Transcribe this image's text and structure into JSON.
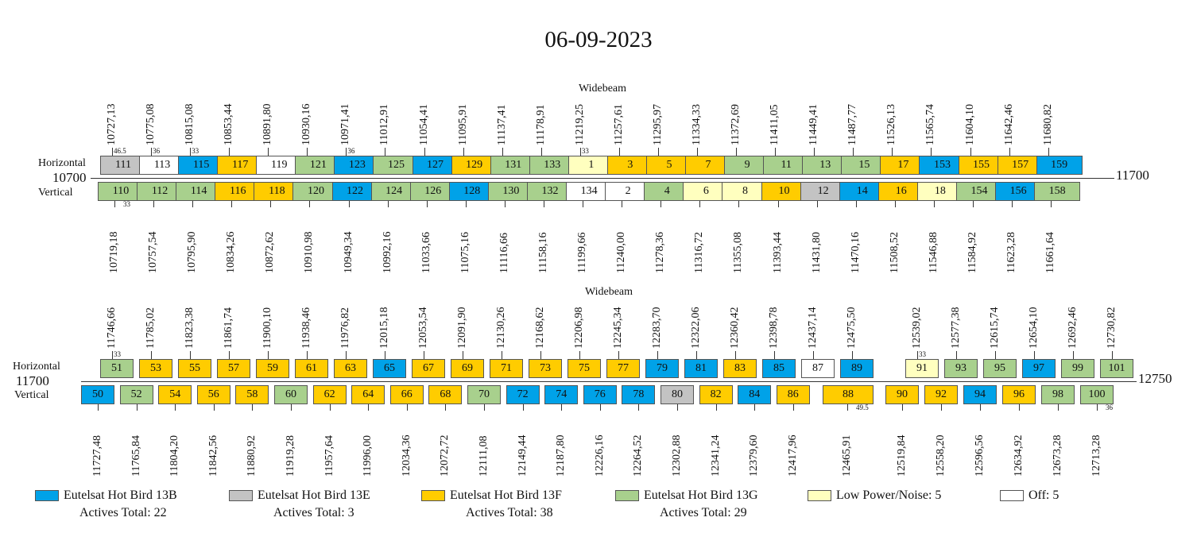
{
  "title": "06-09-2023",
  "colors": {
    "13B": "#00a2e8",
    "13E": "#c3c3c3",
    "13F": "#ffcc00",
    "13G": "#a8d08d",
    "low": "#ffffbf",
    "off": "#ffffff"
  },
  "panels": [
    {
      "beam": "Widebeam",
      "start": "10700",
      "end": "11700",
      "h_label": "Horizontal",
      "v_label": "Vertical",
      "horizontal": [
        {
          "ch": "111",
          "freq": "10727,13",
          "sat": "13E",
          "sr": "46.5"
        },
        {
          "ch": "113",
          "freq": "10775,08",
          "sat": "off",
          "sr": "36"
        },
        {
          "ch": "115",
          "freq": "10815,08",
          "sat": "13B",
          "sr": "33"
        },
        {
          "ch": "117",
          "freq": "10853,44",
          "sat": "13F"
        },
        {
          "ch": "119",
          "freq": "10891,80",
          "sat": "off"
        },
        {
          "ch": "121",
          "freq": "10930,16",
          "sat": "13G"
        },
        {
          "ch": "123",
          "freq": "10971,41",
          "sat": "13B",
          "sr": "36"
        },
        {
          "ch": "125",
          "freq": "11012,91",
          "sat": "13G"
        },
        {
          "ch": "127",
          "freq": "11054,41",
          "sat": "13B"
        },
        {
          "ch": "129",
          "freq": "11095,91",
          "sat": "13F"
        },
        {
          "ch": "131",
          "freq": "11137,41",
          "sat": "13G"
        },
        {
          "ch": "133",
          "freq": "11178,91",
          "sat": "13G"
        },
        {
          "ch": "1",
          "freq": "11219,25",
          "sat": "low",
          "sr": "33"
        },
        {
          "ch": "3",
          "freq": "11257,61",
          "sat": "13F"
        },
        {
          "ch": "5",
          "freq": "11295,97",
          "sat": "13F"
        },
        {
          "ch": "7",
          "freq": "11334,33",
          "sat": "13F"
        },
        {
          "ch": "9",
          "freq": "11372,69",
          "sat": "13G"
        },
        {
          "ch": "11",
          "freq": "11411,05",
          "sat": "13G"
        },
        {
          "ch": "13",
          "freq": "11449,41",
          "sat": "13G"
        },
        {
          "ch": "15",
          "freq": "11487,77",
          "sat": "13G"
        },
        {
          "ch": "17",
          "freq": "11526,13",
          "sat": "13F"
        },
        {
          "ch": "153",
          "freq": "11565,74",
          "sat": "13B"
        },
        {
          "ch": "155",
          "freq": "11604,10",
          "sat": "13F"
        },
        {
          "ch": "157",
          "freq": "11642,46",
          "sat": "13F"
        },
        {
          "ch": "159",
          "freq": "11680,82",
          "sat": "13B"
        }
      ],
      "vertical": [
        {
          "ch": "110",
          "freq": "10719,18",
          "sat": "13G",
          "sr": "33"
        },
        {
          "ch": "112",
          "freq": "10757,54",
          "sat": "13G"
        },
        {
          "ch": "114",
          "freq": "10795,90",
          "sat": "13G"
        },
        {
          "ch": "116",
          "freq": "10834,26",
          "sat": "13F"
        },
        {
          "ch": "118",
          "freq": "10872,62",
          "sat": "13F"
        },
        {
          "ch": "120",
          "freq": "10910,98",
          "sat": "13G"
        },
        {
          "ch": "122",
          "freq": "10949,34",
          "sat": "13B"
        },
        {
          "ch": "124",
          "freq": "10992,16",
          "sat": "13G"
        },
        {
          "ch": "126",
          "freq": "11033,66",
          "sat": "13G"
        },
        {
          "ch": "128",
          "freq": "11075,16",
          "sat": "13B"
        },
        {
          "ch": "130",
          "freq": "11116,66",
          "sat": "13G"
        },
        {
          "ch": "132",
          "freq": "11158,16",
          "sat": "13G"
        },
        {
          "ch": "134",
          "freq": "11199,66",
          "sat": "off"
        },
        {
          "ch": "2",
          "freq": "11240,00",
          "sat": "off"
        },
        {
          "ch": "4",
          "freq": "11278,36",
          "sat": "13G"
        },
        {
          "ch": "6",
          "freq": "11316,72",
          "sat": "low"
        },
        {
          "ch": "8",
          "freq": "11355,08",
          "sat": "low"
        },
        {
          "ch": "10",
          "freq": "11393,44",
          "sat": "13F"
        },
        {
          "ch": "12",
          "freq": "11431,80",
          "sat": "13E"
        },
        {
          "ch": "14",
          "freq": "11470,16",
          "sat": "13B"
        },
        {
          "ch": "16",
          "freq": "11508,52",
          "sat": "13F"
        },
        {
          "ch": "18",
          "freq": "11546,88",
          "sat": "low"
        },
        {
          "ch": "154",
          "freq": "11584,92",
          "sat": "13G"
        },
        {
          "ch": "156",
          "freq": "11623,28",
          "sat": "13B"
        },
        {
          "ch": "158",
          "freq": "11661,64",
          "sat": "13G"
        }
      ]
    },
    {
      "beam": "Widebeam",
      "start": "11700",
      "end": "12750",
      "h_label": "Horizontal",
      "v_label": "Vertical",
      "horizontal": [
        {
          "ch": "51",
          "freq": "11746,66",
          "sat": "13G",
          "sr": "33"
        },
        {
          "ch": "53",
          "freq": "11785,02",
          "sat": "13F"
        },
        {
          "ch": "55",
          "freq": "11823,38",
          "sat": "13F"
        },
        {
          "ch": "57",
          "freq": "11861,74",
          "sat": "13F"
        },
        {
          "ch": "59",
          "freq": "11900,10",
          "sat": "13F"
        },
        {
          "ch": "61",
          "freq": "11938,46",
          "sat": "13F"
        },
        {
          "ch": "63",
          "freq": "11976,82",
          "sat": "13F"
        },
        {
          "ch": "65",
          "freq": "12015,18",
          "sat": "13B"
        },
        {
          "ch": "67",
          "freq": "12053,54",
          "sat": "13F"
        },
        {
          "ch": "69",
          "freq": "12091,90",
          "sat": "13F"
        },
        {
          "ch": "71",
          "freq": "12130,26",
          "sat": "13F"
        },
        {
          "ch": "73",
          "freq": "12168,62",
          "sat": "13F"
        },
        {
          "ch": "75",
          "freq": "12206,98",
          "sat": "13F"
        },
        {
          "ch": "77",
          "freq": "12245,34",
          "sat": "13F"
        },
        {
          "ch": "79",
          "freq": "12283,70",
          "sat": "13B"
        },
        {
          "ch": "81",
          "freq": "12322,06",
          "sat": "13B"
        },
        {
          "ch": "83",
          "freq": "12360,42",
          "sat": "13F"
        },
        {
          "ch": "85",
          "freq": "12398,78",
          "sat": "13B"
        },
        {
          "ch": "87",
          "freq": "12437,14",
          "sat": "off"
        },
        {
          "ch": "89",
          "freq": "12475,50",
          "sat": "13B"
        },
        {
          "ch": "91",
          "freq": "12539,02",
          "sat": "low",
          "sr": "33"
        },
        {
          "ch": "93",
          "freq": "12577,38",
          "sat": "13G"
        },
        {
          "ch": "95",
          "freq": "12615,74",
          "sat": "13G"
        },
        {
          "ch": "97",
          "freq": "12654,10",
          "sat": "13B"
        },
        {
          "ch": "99",
          "freq": "12692,46",
          "sat": "13G"
        },
        {
          "ch": "101",
          "freq": "12730,82",
          "sat": "13G"
        }
      ],
      "vertical": [
        {
          "ch": "50",
          "freq": "11727,48",
          "sat": "13B"
        },
        {
          "ch": "52",
          "freq": "11765,84",
          "sat": "13G"
        },
        {
          "ch": "54",
          "freq": "11804,20",
          "sat": "13F"
        },
        {
          "ch": "56",
          "freq": "11842,56",
          "sat": "13F"
        },
        {
          "ch": "58",
          "freq": "11880,92",
          "sat": "13F"
        },
        {
          "ch": "60",
          "freq": "11919,28",
          "sat": "13G"
        },
        {
          "ch": "62",
          "freq": "11957,64",
          "sat": "13F"
        },
        {
          "ch": "64",
          "freq": "11996,00",
          "sat": "13F"
        },
        {
          "ch": "66",
          "freq": "12034,36",
          "sat": "13F"
        },
        {
          "ch": "68",
          "freq": "12072,72",
          "sat": "13F"
        },
        {
          "ch": "70",
          "freq": "12111,08",
          "sat": "13G"
        },
        {
          "ch": "72",
          "freq": "12149,44",
          "sat": "13B"
        },
        {
          "ch": "74",
          "freq": "12187,80",
          "sat": "13B"
        },
        {
          "ch": "76",
          "freq": "12226,16",
          "sat": "13B"
        },
        {
          "ch": "78",
          "freq": "12264,52",
          "sat": "13B"
        },
        {
          "ch": "80",
          "freq": "12302,88",
          "sat": "13E"
        },
        {
          "ch": "82",
          "freq": "12341,24",
          "sat": "13F"
        },
        {
          "ch": "84",
          "freq": "12379,60",
          "sat": "13B"
        },
        {
          "ch": "86",
          "freq": "12417,96",
          "sat": "13F"
        },
        {
          "ch": "88",
          "freq": "12465,91",
          "sat": "13F",
          "sr": "49.5",
          "wide": true
        },
        {
          "ch": "90",
          "freq": "12519,84",
          "sat": "13F"
        },
        {
          "ch": "92",
          "freq": "12558,20",
          "sat": "13F"
        },
        {
          "ch": "94",
          "freq": "12596,56",
          "sat": "13B"
        },
        {
          "ch": "96",
          "freq": "12634,92",
          "sat": "13F"
        },
        {
          "ch": "98",
          "freq": "12673,28",
          "sat": "13G"
        },
        {
          "ch": "100",
          "freq": "12713,28",
          "sat": "13G",
          "sr": "36"
        }
      ]
    }
  ],
  "legend": [
    {
      "key": "13B",
      "name": "Eutelsat Hot Bird 13B",
      "total": "Actives Total: 22"
    },
    {
      "key": "13E",
      "name": "Eutelsat Hot Bird 13E",
      "total": "Actives Total: 3"
    },
    {
      "key": "13F",
      "name": "Eutelsat Hot Bird 13F",
      "total": "Actives Total: 38"
    },
    {
      "key": "13G",
      "name": "Eutelsat Hot Bird 13G",
      "total": "Actives Total: 29"
    },
    {
      "key": "low",
      "name": "Low Power/Noise: 5",
      "total": ""
    },
    {
      "key": "off",
      "name": "Off: 5",
      "total": ""
    }
  ]
}
